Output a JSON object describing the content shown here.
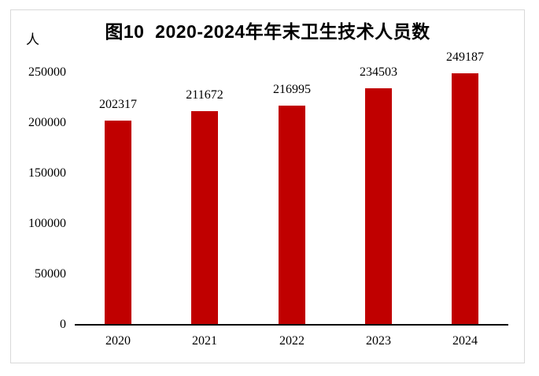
{
  "figure": {
    "title": "图10  2020-2024年年末卫生技术人员数",
    "unit_label": "人"
  },
  "chart_data": {
    "type": "bar",
    "title": "图10  2020-2024年年末卫生技术人员数",
    "subtitle": "",
    "xlabel": "",
    "ylabel": "人",
    "categories": [
      "2020",
      "2021",
      "2022",
      "2023",
      "2024"
    ],
    "values": [
      202317,
      211672,
      216995,
      234503,
      249187
    ],
    "data_labels": [
      "202317",
      "211672",
      "216995",
      "234503",
      "249187"
    ],
    "yticks": [
      0,
      50000,
      100000,
      150000,
      200000,
      250000
    ],
    "ytick_labels": [
      "0",
      "50000",
      "100000",
      "150000",
      "200000",
      "250000"
    ],
    "ylim": [
      0,
      250000
    ],
    "grid": false,
    "legend_position": "none",
    "bar_color": "#c00000",
    "axis_color": "#000000",
    "frame_border_color": "#d9d9d9",
    "text_color": "#000000"
  }
}
